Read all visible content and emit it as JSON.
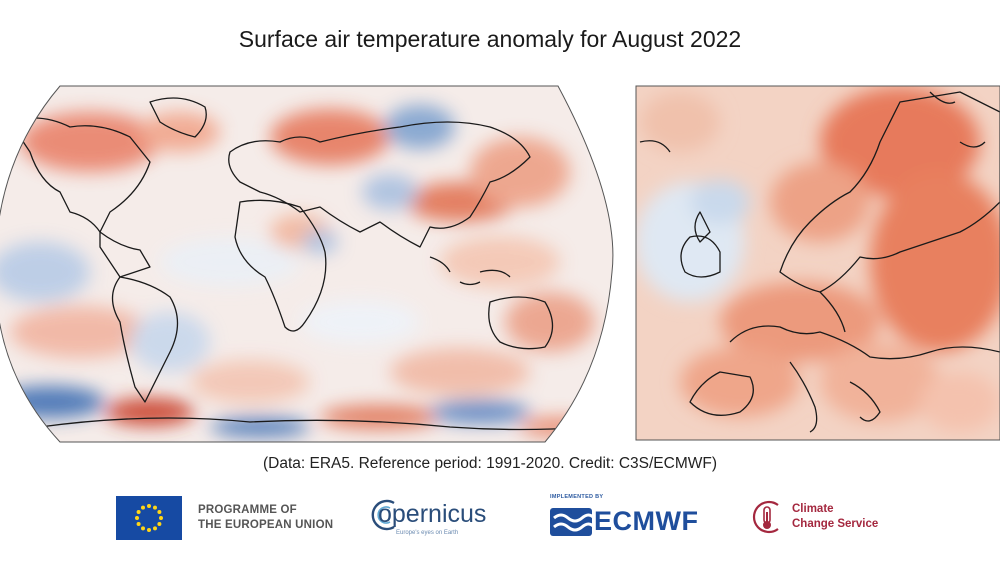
{
  "title": "Surface air temperature anomaly for August 2022",
  "caption": "(Data: ERA5.  Reference period: 1991-2020.  Credit: C3S/ECMWF)",
  "maps": {
    "global": {
      "name": "world-anomaly-map"
    },
    "europe": {
      "name": "europe-anomaly-map"
    }
  },
  "logos": {
    "eu_line1": "PROGRAMME OF",
    "eu_line2": "THE EUROPEAN UNION",
    "copernicus": "opernicus",
    "copernicus_tagline": "Europe's eyes on Earth",
    "ecmwf_implemented_by": "IMPLEMENTED BY",
    "ecmwf": "ECMWF",
    "c3s_line1": "Climate",
    "c3s_line2": "Change Service"
  },
  "colors": {
    "warm": "#e8785a",
    "warm_light": "#f6c7b0",
    "cool": "#6a95c9",
    "cool_light": "#cddcee",
    "neutral": "#f4eeee",
    "eu_blue": "#164aa3",
    "ecmwf_blue": "#1f4e9c",
    "c3s_red": "#a4283f"
  }
}
